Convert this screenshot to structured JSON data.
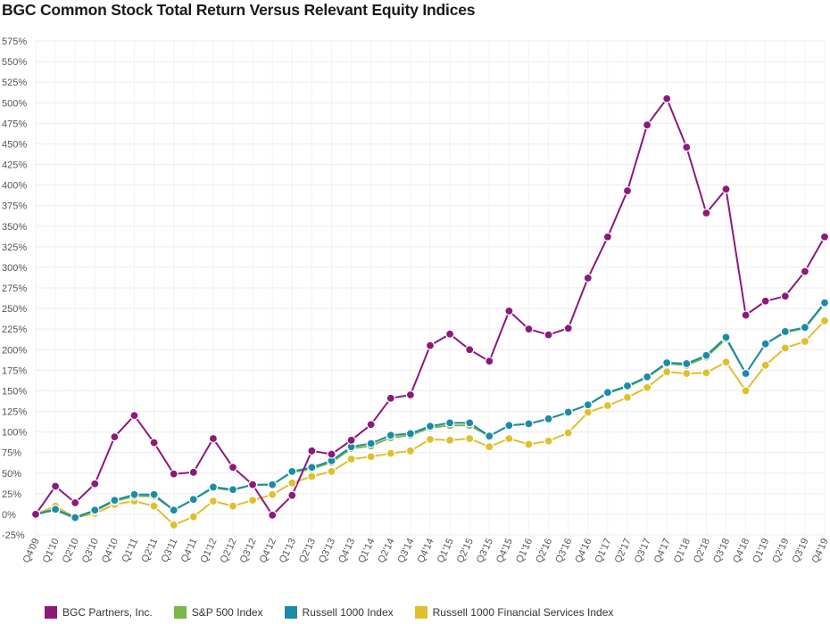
{
  "chart_data": {
    "type": "line",
    "title": "BGC Common Stock Total Return Versus Relevant Equity Indices",
    "xlabel": "",
    "ylabel": "",
    "ylim": [
      -25,
      575
    ],
    "y_ticks": [
      "-25%",
      "0%",
      "25%",
      "50%",
      "75%",
      "100%",
      "125%",
      "150%",
      "175%",
      "200%",
      "225%",
      "250%",
      "275%",
      "300%",
      "325%",
      "350%",
      "375%",
      "400%",
      "425%",
      "450%",
      "475%",
      "500%",
      "525%",
      "550%",
      "575%"
    ],
    "grid": true,
    "legend_position": "bottom",
    "categories": [
      "Q4'09",
      "Q1'10",
      "Q2'10",
      "Q3'10",
      "Q4'10",
      "Q1'11",
      "Q2'11",
      "Q3'11",
      "Q4'11",
      "Q1'12",
      "Q2'12",
      "Q3'12",
      "Q4'12",
      "Q1'13",
      "Q2'13",
      "Q3'13",
      "Q4'13",
      "Q1'14",
      "Q2'14",
      "Q3'14",
      "Q4'14",
      "Q1'15",
      "Q2'15",
      "Q3'15",
      "Q4'15",
      "Q1'16",
      "Q2'16",
      "Q3'16",
      "Q4'16",
      "Q1'17",
      "Q2'17",
      "Q3'17",
      "Q4'17",
      "Q1'18",
      "Q2'18",
      "Q3'18",
      "Q4'18",
      "Q1'19",
      "Q2'19",
      "Q3'19",
      "Q4'19"
    ],
    "series": [
      {
        "name": "BGC Partners, Inc.",
        "color": "#8b1a7a",
        "values": [
          0,
          34,
          14,
          37,
          94,
          120,
          87,
          49,
          51,
          92,
          57,
          36,
          -1,
          23,
          77,
          73,
          90,
          109,
          141,
          145,
          205,
          219,
          200,
          186,
          247,
          225,
          218,
          226,
          287,
          337,
          393,
          473,
          505,
          446,
          366,
          395,
          242,
          259,
          265,
          295,
          337
        ]
      },
      {
        "name": "S&P 500 Index",
        "color": "#7ab648",
        "values": [
          0,
          5,
          -5,
          4,
          16,
          22,
          22,
          5,
          18,
          32,
          29,
          36,
          36,
          51,
          55,
          63,
          80,
          83,
          93,
          96,
          105,
          108,
          108,
          95,
          108,
          110,
          116,
          124,
          133,
          147,
          155,
          166,
          183,
          181,
          191,
          213,
          171,
          207,
          221,
          226,
          256
        ]
      },
      {
        "name": "Russell 1000 Index",
        "color": "#1a8ca8",
        "values": [
          0,
          6,
          -4,
          5,
          17,
          24,
          24,
          5,
          18,
          33,
          30,
          36,
          36,
          52,
          57,
          65,
          82,
          86,
          96,
          98,
          107,
          111,
          111,
          95,
          108,
          110,
          116,
          124,
          133,
          148,
          156,
          167,
          184,
          183,
          193,
          215,
          171,
          207,
          222,
          227,
          257
        ]
      },
      {
        "name": "Russell 1000 Financial Services Index",
        "color": "#e0bf2f",
        "values": [
          0,
          10,
          -4,
          1,
          12,
          16,
          10,
          -13,
          -3,
          16,
          10,
          17,
          24,
          38,
          46,
          52,
          67,
          70,
          74,
          77,
          91,
          90,
          92,
          82,
          92,
          85,
          89,
          99,
          124,
          132,
          142,
          154,
          173,
          171,
          172,
          185,
          150,
          181,
          202,
          210,
          235
        ]
      }
    ]
  }
}
